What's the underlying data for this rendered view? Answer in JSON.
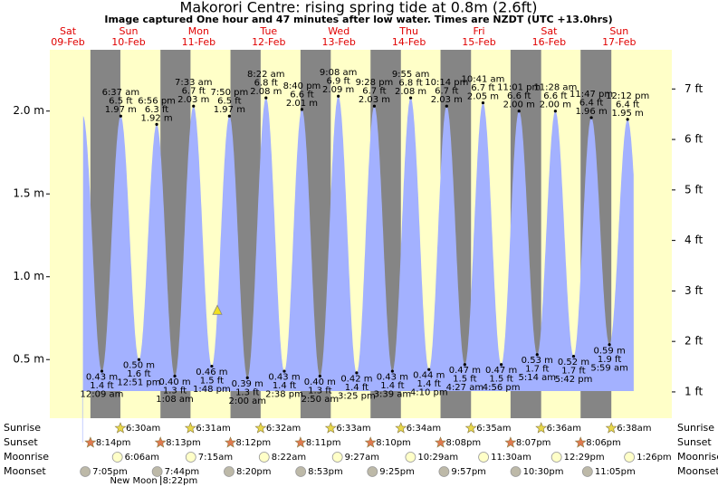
{
  "chart_data": {
    "type": "tide",
    "title": "Makorori Centre: rising  spring tide at 0.8m (2.6ft)",
    "subtitle": "Image captured One hour and 47 minutes after low water. Times are NZDT (UTC +13.0hrs)",
    "ylim": [
      0.31,
      2.37
    ],
    "yticks": [
      {
        "value": 0.5,
        "label": "0.5 m"
      },
      {
        "value": 1.0,
        "label": "1.0 m"
      },
      {
        "value": 1.5,
        "label": "1.5 m"
      },
      {
        "value": 2.0,
        "label": "2.0 m"
      }
    ],
    "y2lim": [
      1.017,
      7.776
    ],
    "y2ticks": [
      {
        "value": 1,
        "label": "1 ft"
      },
      {
        "value": 2,
        "label": "2 ft"
      },
      {
        "value": 3,
        "label": "3 ft"
      },
      {
        "value": 4,
        "label": "4 ft"
      },
      {
        "value": 5,
        "label": "5 ft"
      },
      {
        "value": 6,
        "label": "6 ft"
      },
      {
        "value": 7,
        "label": "7 ft"
      }
    ],
    "colors": {
      "day": "#ffffc8",
      "night": "#858585",
      "water": "#a3b1ff",
      "day_label": "#e00000",
      "marker": "#f0e020"
    },
    "row_labels": [
      "Sunrise",
      "Sunset",
      "Moonrise",
      "Moonset"
    ],
    "now_marker": {
      "height_m": 0.8
    },
    "moon_phase": {
      "phase": "New Moon",
      "time": "8:22pm"
    },
    "days": [
      {
        "day": "Sat",
        "date": "09-Feb",
        "tides": [],
        "sunset": "8:14pm",
        "moonset": "7:05pm"
      },
      {
        "day": "Sun",
        "date": "10-Feb",
        "sunrise": "6:30am",
        "sunset": "8:13pm",
        "moonrise": "6:06am",
        "moonset": "7:44pm",
        "tides": [
          {
            "time": "12:09 am",
            "height_m": 0.43,
            "height_m_label": "0.43 m",
            "height_ft": 1.4,
            "height_ft_label": "1.4 ft"
          },
          {
            "time": "6:37 am",
            "height_m": 1.97,
            "height_m_label": "1.97 m",
            "height_ft": 6.5,
            "height_ft_label": "6.5 ft"
          },
          {
            "time": "12:51 pm",
            "height_m": 0.5,
            "height_m_label": "0.50 m",
            "height_ft": 1.6,
            "height_ft_label": "1.6 ft"
          },
          {
            "time": "6:56 pm",
            "height_m": 1.92,
            "height_m_label": "1.92 m",
            "height_ft": 6.3,
            "height_ft_label": "6.3 ft"
          }
        ]
      },
      {
        "day": "Mon",
        "date": "11-Feb",
        "sunrise": "6:31am",
        "sunset": "8:12pm",
        "moonrise": "7:15am",
        "moonset": "8:20pm",
        "tides": [
          {
            "time": "1:08 am",
            "height_m": 0.4,
            "height_m_label": "0.40 m",
            "height_ft": 1.3,
            "height_ft_label": "1.3 ft"
          },
          {
            "time": "7:33 am",
            "height_m": 2.03,
            "height_m_label": "2.03 m",
            "height_ft": 6.7,
            "height_ft_label": "6.7 ft"
          },
          {
            "time": "1:48 pm",
            "height_m": 0.46,
            "height_m_label": "0.46 m",
            "height_ft": 1.5,
            "height_ft_label": "1.5 ft"
          },
          {
            "time": "7:50 pm",
            "height_m": 1.97,
            "height_m_label": "1.97 m",
            "height_ft": 6.5,
            "height_ft_label": "6.5 ft"
          }
        ]
      },
      {
        "day": "Tue",
        "date": "12-Feb",
        "sunrise": "6:32am",
        "sunset": "8:11pm",
        "moonrise": "8:22am",
        "moonset": "8:53pm",
        "tides": [
          {
            "time": "2:00 am",
            "height_m": 0.39,
            "height_m_label": "0.39 m",
            "height_ft": 1.3,
            "height_ft_label": "1.3 ft"
          },
          {
            "time": "8:22 am",
            "height_m": 2.08,
            "height_m_label": "2.08 m",
            "height_ft": 6.8,
            "height_ft_label": "6.8 ft"
          },
          {
            "time": "2:38 pm",
            "height_m": 0.43,
            "height_m_label": "0.43 m",
            "height_ft": 1.4,
            "height_ft_label": "1.4 ft"
          },
          {
            "time": "8:40 pm",
            "height_m": 2.01,
            "height_m_label": "2.01 m",
            "height_ft": 6.6,
            "height_ft_label": "6.6 ft"
          }
        ]
      },
      {
        "day": "Wed",
        "date": "13-Feb",
        "sunrise": "6:33am",
        "sunset": "8:10pm",
        "moonrise": "9:27am",
        "moonset": "9:25pm",
        "tides": [
          {
            "time": "2:50 am",
            "height_m": 0.4,
            "height_m_label": "0.40 m",
            "height_ft": 1.3,
            "height_ft_label": "1.3 ft"
          },
          {
            "time": "9:08 am",
            "height_m": 2.09,
            "height_m_label": "2.09 m",
            "height_ft": 6.9,
            "height_ft_label": "6.9 ft"
          },
          {
            "time": "3:25 pm",
            "height_m": 0.42,
            "height_m_label": "0.42 m",
            "height_ft": 1.4,
            "height_ft_label": "1.4 ft"
          },
          {
            "time": "9:28 pm",
            "height_m": 2.03,
            "height_m_label": "2.03 m",
            "height_ft": 6.7,
            "height_ft_label": "6.7 ft"
          }
        ]
      },
      {
        "day": "Thu",
        "date": "14-Feb",
        "sunrise": "6:34am",
        "sunset": "8:08pm",
        "moonrise": "10:29am",
        "moonset": "9:57pm",
        "tides": [
          {
            "time": "3:39 am",
            "height_m": 0.43,
            "height_m_label": "0.43 m",
            "height_ft": 1.4,
            "height_ft_label": "1.4 ft"
          },
          {
            "time": "9:55 am",
            "height_m": 2.08,
            "height_m_label": "2.08 m",
            "height_ft": 6.8,
            "height_ft_label": "6.8 ft"
          },
          {
            "time": "4:10 pm",
            "height_m": 0.44,
            "height_m_label": "0.44 m",
            "height_ft": 1.4,
            "height_ft_label": "1.4 ft"
          },
          {
            "time": "10:14 pm",
            "height_m": 2.03,
            "height_m_label": "2.03 m",
            "height_ft": 6.7,
            "height_ft_label": "6.7 ft"
          }
        ]
      },
      {
        "day": "Fri",
        "date": "15-Feb",
        "sunrise": "6:35am",
        "sunset": "8:07pm",
        "moonrise": "11:30am",
        "moonset": "10:30pm",
        "tides": [
          {
            "time": "4:27 am",
            "height_m": 0.47,
            "height_m_label": "0.47 m",
            "height_ft": 1.5,
            "height_ft_label": "1.5 ft"
          },
          {
            "time": "10:41 am",
            "height_m": 2.05,
            "height_m_label": "2.05 m",
            "height_ft": 6.7,
            "height_ft_label": "6.7 ft"
          },
          {
            "time": "4:56 pm",
            "height_m": 0.47,
            "height_m_label": "0.47 m",
            "height_ft": 1.5,
            "height_ft_label": "1.5 ft"
          },
          {
            "time": "11:01 pm",
            "height_m": 2.0,
            "height_m_label": "2.00 m",
            "height_ft": 6.6,
            "height_ft_label": "6.6 ft"
          }
        ]
      },
      {
        "day": "Sat",
        "date": "16-Feb",
        "sunrise": "6:36am",
        "sunset": "8:06pm",
        "moonrise": "12:29pm",
        "moonset": "11:05pm",
        "tides": [
          {
            "time": "5:14 am",
            "height_m": 0.53,
            "height_m_label": "0.53 m",
            "height_ft": 1.7,
            "height_ft_label": "1.7 ft"
          },
          {
            "time": "11:28 am",
            "height_m": 2.0,
            "height_m_label": "2.00 m",
            "height_ft": 6.6,
            "height_ft_label": "6.6 ft"
          },
          {
            "time": "5:42 pm",
            "height_m": 0.52,
            "height_m_label": "0.52 m",
            "height_ft": 1.7,
            "height_ft_label": "1.7 ft"
          },
          {
            "time": "11:47 pm",
            "height_m": 1.96,
            "height_m_label": "1.96 m",
            "height_ft": 6.4,
            "height_ft_label": "6.4 ft"
          }
        ]
      },
      {
        "day": "Sun",
        "date": "17-Feb",
        "sunrise": "6:38am",
        "moonrise": "1:26pm",
        "tides": [
          {
            "time": "5:59 am",
            "height_m": 0.59,
            "height_m_label": "0.59 m",
            "height_ft": 1.9,
            "height_ft_label": "1.9 ft"
          },
          {
            "time": "12:12 pm",
            "height_m": 1.95,
            "height_m_label": "1.95 m",
            "height_ft": 6.4,
            "height_ft_label": "6.4 ft"
          }
        ]
      }
    ]
  }
}
